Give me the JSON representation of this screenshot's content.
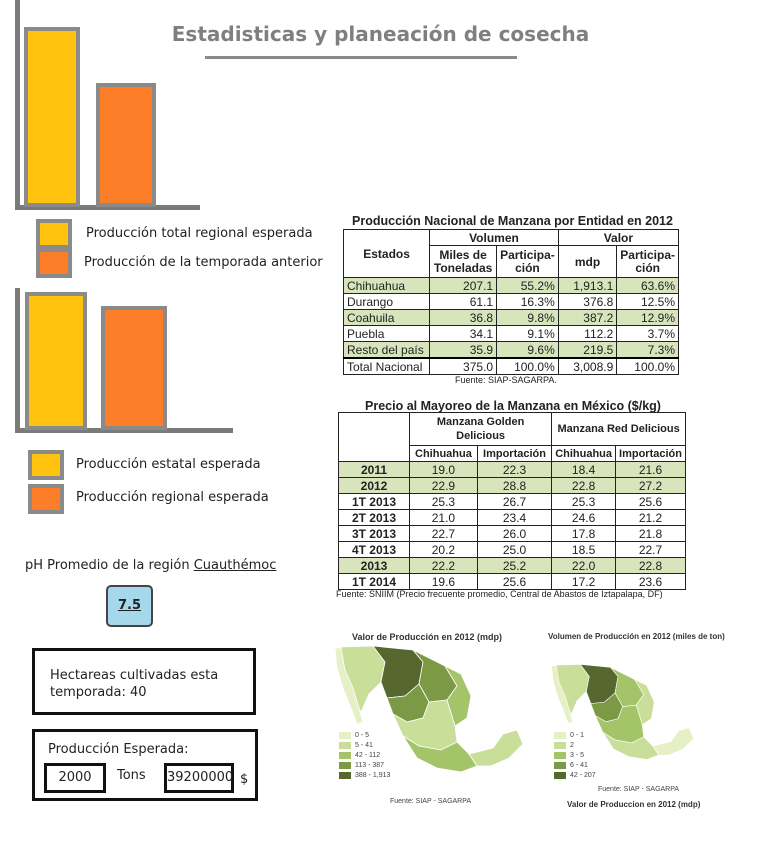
{
  "page": {
    "title": "Estadisticas y planeación de cosecha"
  },
  "chart1": {
    "legend": [
      {
        "label": "Producción total regional esperada",
        "color": "#ffc20e"
      },
      {
        "label": "Producción de la temporada anterior",
        "color": "#fd7e28"
      }
    ]
  },
  "chart2": {
    "legend": [
      {
        "label": "Producción estatal esperada",
        "color": "#ffc20e"
      },
      {
        "label": "Producción regional esperada",
        "color": "#fd7e28"
      }
    ]
  },
  "ph": {
    "label": "pH Promedio de la región ",
    "region": "Cuauthémoc",
    "value": "7.5"
  },
  "hectares": {
    "text": "Hectareas cultivadas esta temporada: 40"
  },
  "production": {
    "label": "Producción Esperada:",
    "tons_value": "2000",
    "tons_unit": "Tons",
    "money_value": "39200000",
    "money_unit": "$"
  },
  "table1": {
    "caption": "Producción Nacional de Manzana por Entidad en 2012",
    "head_states": "Estados",
    "head_volume": "Volumen",
    "head_value": "Valor",
    "sub_miles": "Miles de Toneladas",
    "sub_part1": "Participa-ción",
    "sub_mdp": "mdp",
    "sub_part2": "Participa-ción",
    "rows": [
      {
        "state": "Chihuahua",
        "vol": "207.1",
        "vp": "55.2%",
        "mdp": "1,913.1",
        "mp": "63.6%"
      },
      {
        "state": "Durango",
        "vol": "61.1",
        "vp": "16.3%",
        "mdp": "376.8",
        "mp": "12.5%"
      },
      {
        "state": "Coahuila",
        "vol": "36.8",
        "vp": "9.8%",
        "mdp": "387.2",
        "mp": "12.9%"
      },
      {
        "state": "Puebla",
        "vol": "34.1",
        "vp": "9.1%",
        "mdp": "112.2",
        "mp": "3.7%"
      },
      {
        "state": "Resto del país",
        "vol": "35.9",
        "vp": "9.6%",
        "mdp": "219.5",
        "mp": "7.3%"
      },
      {
        "state": "Total Nacional",
        "vol": "375.0",
        "vp": "100.0%",
        "mdp": "3,008.9",
        "mp": "100.0%"
      }
    ],
    "source": "Fuente: SIAP-SAGARPA."
  },
  "table2": {
    "caption": "Precio al Mayoreo de la Manzana en México ($/kg)",
    "head_golden": "Manzana Golden Delicious",
    "head_red": "Manzana Red Delicious",
    "sub_chih1": "Chihuahua",
    "sub_imp1": "Importación",
    "sub_chih2": "Chihuahua",
    "sub_imp2": "Importación",
    "rows": [
      {
        "period": "2011",
        "gc": "19.0",
        "gi": "22.3",
        "rc": "18.4",
        "ri": "21.6"
      },
      {
        "period": "2012",
        "gc": "22.9",
        "gi": "28.8",
        "rc": "22.8",
        "ri": "27.2"
      },
      {
        "period": "1T 2013",
        "gc": "25.3",
        "gi": "26.7",
        "rc": "25.3",
        "ri": "25.6"
      },
      {
        "period": "2T 2013",
        "gc": "21.0",
        "gi": "23.4",
        "rc": "24.6",
        "ri": "21.2"
      },
      {
        "period": "3T 2013",
        "gc": "22.7",
        "gi": "26.0",
        "rc": "17.8",
        "ri": "21.8"
      },
      {
        "period": "4T 2013",
        "gc": "20.2",
        "gi": "25.0",
        "rc": "18.5",
        "ri": "22.7"
      },
      {
        "period": "2013",
        "gc": "22.2",
        "gi": "25.2",
        "rc": "22.0",
        "ri": "22.8"
      },
      {
        "period": "1T 2014",
        "gc": "19.6",
        "gi": "25.6",
        "rc": "17.2",
        "ri": "23.6"
      }
    ],
    "source": "Fuente: SNIIM (Precio frecuente  promedio, Central de Abastos de Iztapalapa, DF)"
  },
  "map1": {
    "title": "Valor de Producción en 2012 (mdp)",
    "legend": [
      "0 - 5",
      "5 - 41",
      "42 - 112",
      "113 - 387",
      "388 - 1,913"
    ],
    "source": "Fuente: SIAP - SAGARPA"
  },
  "map2": {
    "title": "Volumen de Producción en 2012 (miles de ton)",
    "legend": [
      "0 - 1",
      "2",
      "3 - 5",
      "6 - 41",
      "42 - 207"
    ],
    "source": "Fuente: SIAP - SAGARPA",
    "footer": "Valor de Produccion en 2012 (mdp)"
  },
  "colors": {
    "yellow": "#ffc20e",
    "orange": "#fd7e28",
    "table_highlight": "#d8e4bc",
    "ph_box": "#a4d8ea",
    "map_scale": [
      "#e6f0c4",
      "#c9de98",
      "#a4c46a",
      "#7c9a45",
      "#56682e"
    ]
  }
}
